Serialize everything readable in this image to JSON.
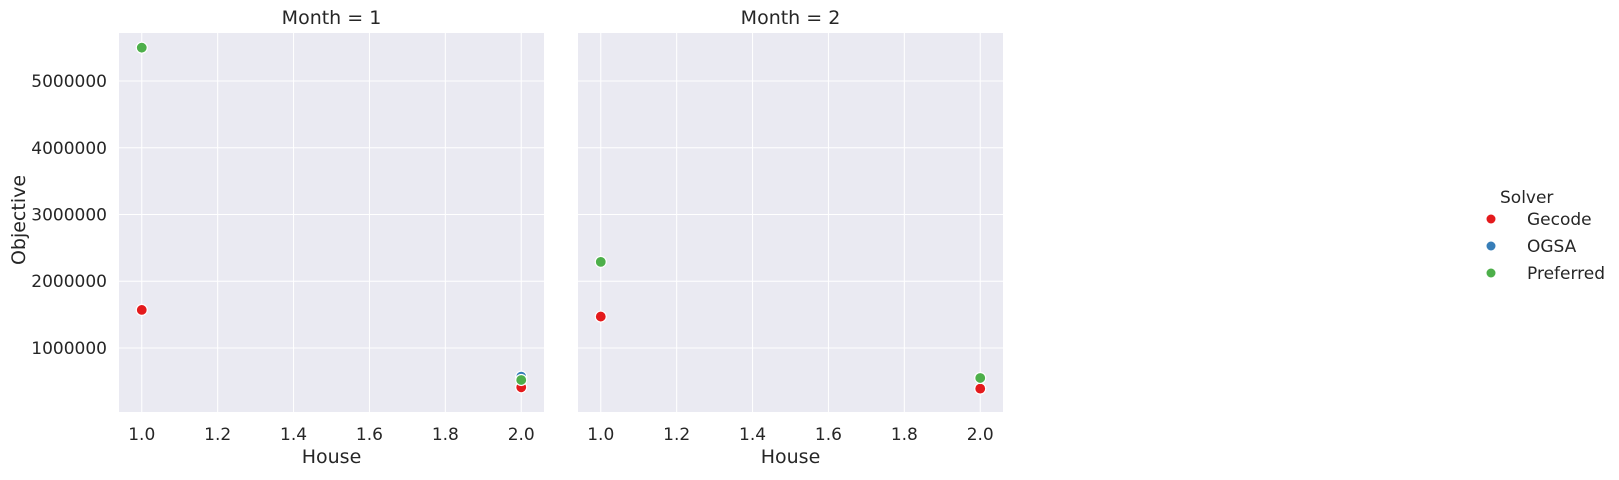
{
  "chart_data": {
    "type": "scatter",
    "xlabel": "House",
    "ylabel": "Objective",
    "xlim": [
      0.94,
      2.06
    ],
    "ylim": [
      40000,
      5720000
    ],
    "x_ticks": [
      "1.0",
      "1.2",
      "1.4",
      "1.6",
      "1.8",
      "2.0"
    ],
    "y_ticks": [
      "1000000",
      "2000000",
      "3000000",
      "4000000",
      "5000000"
    ],
    "grid": true,
    "legend": {
      "title": "Solver",
      "placement": "right",
      "entries": [
        {
          "name": "Gecode",
          "color": "#e41a1c"
        },
        {
          "name": "OGSA",
          "color": "#377eb8"
        },
        {
          "name": "Preferred",
          "color": "#4daf4a"
        }
      ]
    },
    "facets": [
      {
        "title": "Month = 1",
        "series": [
          {
            "name": "Gecode",
            "points": [
              [
                1.0,
                1570000
              ],
              [
                2.0,
                410000
              ]
            ]
          },
          {
            "name": "OGSA",
            "points": [
              [
                2.0,
                570000
              ]
            ]
          },
          {
            "name": "Preferred",
            "points": [
              [
                1.0,
                5500000
              ],
              [
                2.0,
                520000
              ]
            ]
          }
        ]
      },
      {
        "title": "Month = 2",
        "series": [
          {
            "name": "Gecode",
            "points": [
              [
                1.0,
                1470000
              ],
              [
                2.0,
                390000
              ]
            ]
          },
          {
            "name": "OGSA",
            "points": []
          },
          {
            "name": "Preferred",
            "points": [
              [
                1.0,
                2290000
              ],
              [
                2.0,
                550000
              ]
            ]
          }
        ]
      }
    ]
  }
}
